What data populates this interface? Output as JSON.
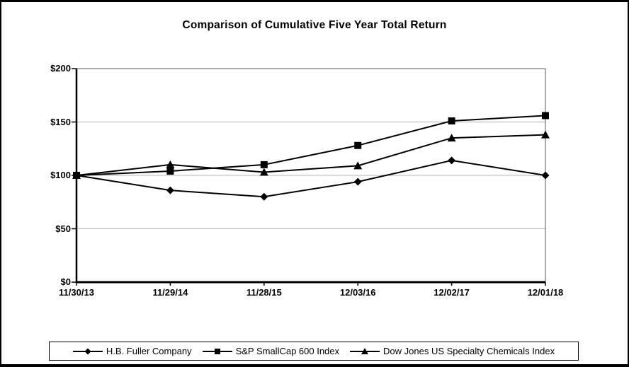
{
  "page": {
    "title": "Comparison of Cumulative Five Year Total Return"
  },
  "chart_data": {
    "type": "line",
    "title": "Comparison of Cumulative Five Year Total Return",
    "x_labels": [
      "11/30/13",
      "11/29/14",
      "11/28/15",
      "12/03/16",
      "12/02/17",
      "12/01/18"
    ],
    "y_ticks": [
      {
        "value": 0,
        "label": "$0"
      },
      {
        "value": 50,
        "label": "$50"
      },
      {
        "value": 100,
        "label": "$100"
      },
      {
        "value": 150,
        "label": "$150"
      },
      {
        "value": 200,
        "label": "$200"
      }
    ],
    "ylim": [
      0,
      200
    ],
    "grid": true,
    "legend_position": "bottom",
    "series": [
      {
        "name": "H.B. Fuller Company",
        "marker": "diamond",
        "values": [
          100,
          86,
          80,
          94,
          114,
          100
        ]
      },
      {
        "name": "S&P SmallCap 600 Index",
        "marker": "square",
        "values": [
          100,
          104,
          110,
          128,
          151,
          156
        ]
      },
      {
        "name": "Dow Jones US Specialty Chemicals Index",
        "marker": "triangle",
        "values": [
          100,
          110,
          103,
          109,
          135,
          138
        ]
      }
    ],
    "colors": {
      "series_line": "#000000",
      "marker_fill": "#000000",
      "gridline": "#b3b3b3",
      "plot_border": "#595959",
      "axis": "#000000",
      "text": "#000000"
    }
  }
}
